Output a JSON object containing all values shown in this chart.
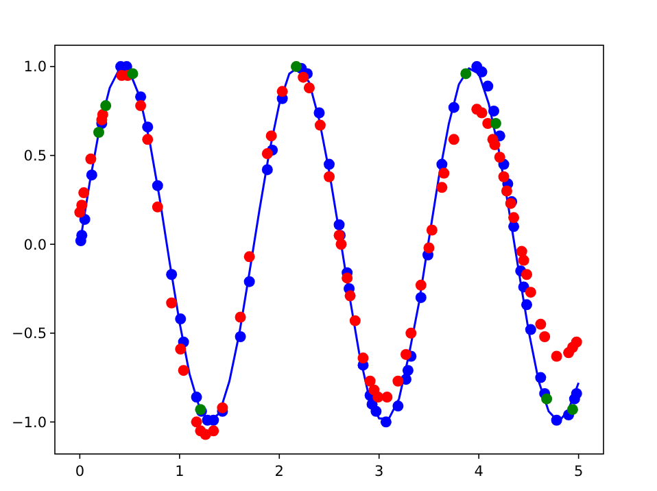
{
  "chart_data": {
    "type": "scatter",
    "xlim": [
      -0.25,
      5.25
    ],
    "ylim": [
      -1.18,
      1.12
    ],
    "xticks": [
      0,
      1,
      2,
      3,
      4,
      5
    ],
    "yticks": [
      {
        "value": -1,
        "label": "−1.0"
      },
      {
        "value": -0.5,
        "label": "−0.5"
      },
      {
        "value": 0,
        "label": "0.0"
      },
      {
        "value": 0.5,
        "label": "0.5"
      },
      {
        "value": 1,
        "label": "1.0"
      }
    ],
    "grid": false,
    "series": [
      {
        "type": "line",
        "color": "#0000ff",
        "marker": "none",
        "x": [
          0,
          0.1,
          0.2,
          0.3,
          0.4,
          0.5,
          0.6,
          0.7,
          0.8,
          0.9,
          1,
          1.1,
          1.2,
          1.3,
          1.4,
          1.5,
          1.6,
          1.7,
          1.8,
          1.9,
          2,
          2.1,
          2.2,
          2.3,
          2.4,
          2.5,
          2.6,
          2.7,
          2.8,
          2.9,
          3,
          3.1,
          3.2,
          3.3,
          3.4,
          3.5,
          3.6,
          3.7,
          3.8,
          3.9,
          4,
          4.1,
          4.2,
          4.3,
          4.4,
          4.5,
          4.6,
          4.7,
          4.8,
          4.9,
          5
        ],
        "values": [
          0,
          0.35,
          0.66,
          0.88,
          0.99,
          0.97,
          0.83,
          0.58,
          0.26,
          -0.1,
          -0.44,
          -0.73,
          -0.92,
          -1,
          -0.95,
          -0.77,
          -0.5,
          -0.16,
          0.19,
          0.52,
          0.79,
          0.96,
          1,
          0.91,
          0.7,
          0.41,
          0.07,
          -0.28,
          -0.61,
          -0.86,
          -0.98,
          -0.98,
          -0.87,
          -0.62,
          -0.33,
          0.03,
          0.38,
          0.68,
          0.9,
          0.99,
          0.96,
          0.79,
          0.53,
          0.2,
          -0.15,
          -0.49,
          -0.77,
          -0.94,
          -1,
          -0.93,
          -0.78
        ]
      },
      {
        "color": "#0000ff",
        "marker": "circle",
        "x": [
          0.01,
          0.02,
          0.05,
          0.12,
          0.22,
          0.41,
          0.47,
          0.61,
          0.68,
          0.78,
          0.92,
          1.01,
          1.04,
          1.17,
          1.22,
          1.28,
          1.34,
          1.43,
          1.61,
          1.7,
          1.88,
          1.93,
          2.03,
          2.22,
          2.28,
          2.4,
          2.5,
          2.6,
          2.61,
          2.68,
          2.7,
          2.84,
          2.91,
          2.93,
          2.97,
          3.07,
          3.19,
          3.27,
          3.29,
          3.32,
          3.42,
          3.49,
          3.63,
          3.75,
          3.98,
          4.03,
          4.09,
          4.15,
          4.21,
          4.25,
          4.29,
          4.33,
          4.35,
          4.42,
          4.45,
          4.48,
          4.52,
          4.62,
          4.66,
          4.78,
          4.9,
          4.96,
          4.98
        ],
        "values": [
          0.02,
          0.05,
          0.14,
          0.39,
          0.68,
          1,
          1,
          0.83,
          0.66,
          0.33,
          -0.17,
          -0.42,
          -0.55,
          -0.86,
          -0.94,
          -0.99,
          -0.99,
          -0.94,
          -0.52,
          -0.21,
          0.42,
          0.53,
          0.82,
          0.99,
          0.96,
          0.74,
          0.45,
          0.11,
          0.05,
          -0.16,
          -0.25,
          -0.68,
          -0.85,
          -0.9,
          -0.94,
          -1,
          -0.91,
          -0.76,
          -0.71,
          -0.63,
          -0.3,
          -0.06,
          0.45,
          0.77,
          1,
          0.97,
          0.89,
          0.75,
          0.61,
          0.45,
          0.34,
          0.24,
          0.1,
          -0.15,
          -0.24,
          -0.34,
          -0.48,
          -0.75,
          -0.84,
          -0.99,
          -0.96,
          -0.87,
          -0.84
        ]
      },
      {
        "color": "#ff0000",
        "marker": "circle",
        "x": [
          0,
          0.02,
          0.04,
          0.11,
          0.22,
          0.23,
          0.42,
          0.48,
          0.61,
          0.68,
          0.78,
          0.92,
          1.01,
          1.04,
          1.17,
          1.21,
          1.26,
          1.34,
          1.43,
          1.61,
          1.7,
          1.88,
          1.92,
          2.03,
          2.24,
          2.3,
          2.41,
          2.5,
          2.6,
          2.62,
          2.68,
          2.71,
          2.76,
          2.84,
          2.91,
          2.95,
          2.99,
          3.08,
          3.19,
          3.27,
          3.32,
          3.42,
          3.5,
          3.53,
          3.63,
          3.65,
          3.75,
          3.98,
          4.03,
          4.09,
          4.14,
          4.16,
          4.21,
          4.25,
          4.28,
          4.32,
          4.35,
          4.43,
          4.45,
          4.48,
          4.52,
          4.62,
          4.66,
          4.78,
          4.9,
          4.94,
          4.98
        ],
        "values": [
          0.18,
          0.22,
          0.29,
          0.48,
          0.7,
          0.73,
          0.95,
          0.95,
          0.78,
          0.59,
          0.21,
          -0.33,
          -0.59,
          -0.71,
          -1,
          -1.05,
          -1.07,
          -1.05,
          -0.92,
          -0.41,
          -0.07,
          0.51,
          0.61,
          0.86,
          0.94,
          0.88,
          0.67,
          0.38,
          0.05,
          0,
          -0.19,
          -0.29,
          -0.43,
          -0.64,
          -0.77,
          -0.82,
          -0.86,
          -0.86,
          -0.77,
          -0.62,
          -0.5,
          -0.23,
          -0.02,
          0.08,
          0.32,
          0.4,
          0.59,
          0.76,
          0.74,
          0.68,
          0.59,
          0.56,
          0.49,
          0.38,
          0.3,
          0.23,
          0.15,
          -0.04,
          -0.09,
          -0.17,
          -0.27,
          -0.45,
          -0.52,
          -0.63,
          -0.61,
          -0.58,
          -0.55
        ]
      },
      {
        "color": "#008000",
        "marker": "circle",
        "x": [
          0.19,
          0.26,
          0.53,
          1.21,
          2.17,
          3.87,
          4.17,
          4.68,
          4.94
        ],
        "values": [
          0.63,
          0.78,
          0.96,
          -0.93,
          1,
          0.96,
          0.68,
          -0.87,
          -0.93
        ]
      }
    ]
  }
}
